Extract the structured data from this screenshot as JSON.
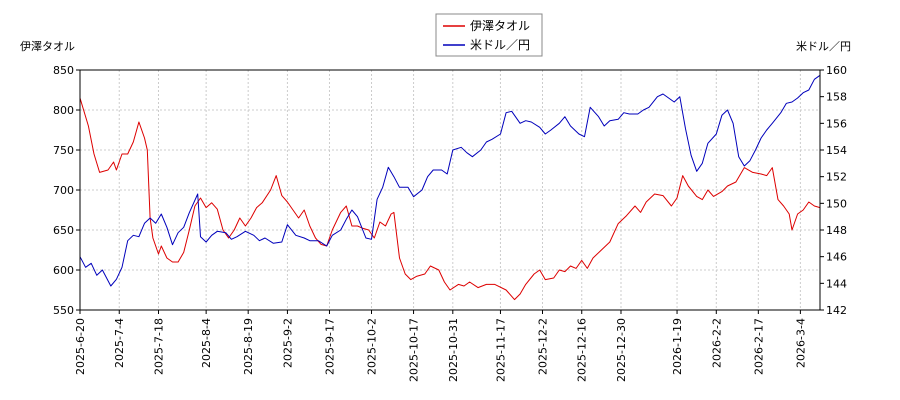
{
  "chart_data": {
    "type": "line",
    "title": "",
    "left_axis": {
      "label": "伊澤タオル",
      "ylim": [
        550,
        850
      ],
      "ticks": [
        550,
        600,
        650,
        700,
        750,
        800,
        850
      ]
    },
    "right_axis": {
      "label": "米ドル／円",
      "ylim": [
        142,
        160
      ],
      "ticks": [
        142,
        144,
        146,
        148,
        150,
        152,
        154,
        156,
        158,
        160
      ]
    },
    "x_axis": {
      "start": "2025-06-20",
      "end": "2026-03-11",
      "tick_labels": [
        "2025-6-20",
        "2025-7-4",
        "2025-7-18",
        "2025-8-4",
        "2025-8-19",
        "2025-9-2",
        "2025-9-17",
        "2025-10-2",
        "2025-10-17",
        "2025-10-31",
        "2025-11-17",
        "2025-12-2",
        "2025-12-16",
        "2025-12-30",
        "2026-1-19",
        "2026-2-2",
        "2026-2-17",
        "2026-3-4"
      ]
    },
    "grid": true,
    "legend": {
      "placement": "top-center"
    },
    "series": [
      {
        "name": "伊澤タオル",
        "axis": "left",
        "color": "#dd0000",
        "points": [
          [
            "2025-06-20",
            815
          ],
          [
            "2025-06-23",
            780
          ],
          [
            "2025-06-25",
            745
          ],
          [
            "2025-06-27",
            722
          ],
          [
            "2025-06-30",
            725
          ],
          [
            "2025-07-02",
            735
          ],
          [
            "2025-07-03",
            725
          ],
          [
            "2025-07-05",
            745
          ],
          [
            "2025-07-07",
            745
          ],
          [
            "2025-07-09",
            760
          ],
          [
            "2025-07-11",
            785
          ],
          [
            "2025-07-13",
            765
          ],
          [
            "2025-07-14",
            750
          ],
          [
            "2025-07-15",
            665
          ],
          [
            "2025-07-16",
            640
          ],
          [
            "2025-07-18",
            620
          ],
          [
            "2025-07-19",
            630
          ],
          [
            "2025-07-21",
            615
          ],
          [
            "2025-07-23",
            610
          ],
          [
            "2025-07-25",
            610
          ],
          [
            "2025-07-27",
            622
          ],
          [
            "2025-07-29",
            650
          ],
          [
            "2025-07-31",
            680
          ],
          [
            "2025-08-02",
            690
          ],
          [
            "2025-08-04",
            678
          ],
          [
            "2025-08-06",
            684
          ],
          [
            "2025-08-08",
            676
          ],
          [
            "2025-08-10",
            650
          ],
          [
            "2025-08-12",
            640
          ],
          [
            "2025-08-14",
            650
          ],
          [
            "2025-08-16",
            665
          ],
          [
            "2025-08-18",
            655
          ],
          [
            "2025-08-20",
            665
          ],
          [
            "2025-08-22",
            678
          ],
          [
            "2025-08-24",
            684
          ],
          [
            "2025-08-27",
            700
          ],
          [
            "2025-08-29",
            718
          ],
          [
            "2025-08-31",
            693
          ],
          [
            "2025-09-02",
            685
          ],
          [
            "2025-09-04",
            675
          ],
          [
            "2025-09-06",
            665
          ],
          [
            "2025-09-08",
            675
          ],
          [
            "2025-09-10",
            655
          ],
          [
            "2025-09-12",
            640
          ],
          [
            "2025-09-14",
            632
          ],
          [
            "2025-09-16",
            630
          ],
          [
            "2025-09-18",
            650
          ],
          [
            "2025-09-21",
            672
          ],
          [
            "2025-09-23",
            680
          ],
          [
            "2025-09-25",
            655
          ],
          [
            "2025-09-27",
            655
          ],
          [
            "2025-09-29",
            652
          ],
          [
            "2025-10-01",
            650
          ],
          [
            "2025-10-03",
            640
          ],
          [
            "2025-10-05",
            660
          ],
          [
            "2025-10-07",
            655
          ],
          [
            "2025-10-09",
            670
          ],
          [
            "2025-10-10",
            672
          ],
          [
            "2025-10-12",
            615
          ],
          [
            "2025-10-14",
            595
          ],
          [
            "2025-10-16",
            588
          ],
          [
            "2025-10-18",
            592
          ],
          [
            "2025-10-21",
            595
          ],
          [
            "2025-10-23",
            605
          ],
          [
            "2025-10-26",
            600
          ],
          [
            "2025-10-28",
            585
          ],
          [
            "2025-10-30",
            575
          ],
          [
            "2025-11-02",
            582
          ],
          [
            "2025-11-04",
            580
          ],
          [
            "2025-11-06",
            585
          ],
          [
            "2025-11-09",
            578
          ],
          [
            "2025-11-12",
            582
          ],
          [
            "2025-11-15",
            582
          ],
          [
            "2025-11-19",
            575
          ],
          [
            "2025-11-22",
            563
          ],
          [
            "2025-11-24",
            570
          ],
          [
            "2025-11-26",
            582
          ],
          [
            "2025-11-29",
            595
          ],
          [
            "2025-12-01",
            600
          ],
          [
            "2025-12-03",
            588
          ],
          [
            "2025-12-06",
            590
          ],
          [
            "2025-12-08",
            600
          ],
          [
            "2025-12-10",
            598
          ],
          [
            "2025-12-12",
            605
          ],
          [
            "2025-12-14",
            602
          ],
          [
            "2025-12-16",
            612
          ],
          [
            "2025-12-18",
            602
          ],
          [
            "2025-12-20",
            615
          ],
          [
            "2025-12-23",
            625
          ],
          [
            "2025-12-26",
            635
          ],
          [
            "2025-12-29",
            658
          ],
          [
            "2026-01-01",
            668
          ],
          [
            "2026-01-04",
            680
          ],
          [
            "2026-01-06",
            672
          ],
          [
            "2026-01-08",
            685
          ],
          [
            "2026-01-11",
            695
          ],
          [
            "2026-01-14",
            693
          ],
          [
            "2026-01-17",
            680
          ],
          [
            "2026-01-19",
            690
          ],
          [
            "2026-01-21",
            718
          ],
          [
            "2026-01-23",
            705
          ],
          [
            "2026-01-26",
            692
          ],
          [
            "2026-01-28",
            688
          ],
          [
            "2026-01-30",
            700
          ],
          [
            "2026-02-01",
            692
          ],
          [
            "2026-02-04",
            698
          ],
          [
            "2026-02-06",
            705
          ],
          [
            "2026-02-09",
            710
          ],
          [
            "2026-02-12",
            728
          ],
          [
            "2026-02-15",
            722
          ],
          [
            "2026-02-18",
            720
          ],
          [
            "2026-02-20",
            718
          ],
          [
            "2026-02-22",
            728
          ],
          [
            "2026-02-24",
            688
          ],
          [
            "2026-02-26",
            680
          ],
          [
            "2026-02-28",
            670
          ],
          [
            "2026-03-01",
            650
          ],
          [
            "2026-03-03",
            670
          ],
          [
            "2026-03-05",
            675
          ],
          [
            "2026-03-07",
            685
          ],
          [
            "2026-03-09",
            680
          ],
          [
            "2026-03-11",
            678
          ]
        ]
      },
      {
        "name": "米ドル／円",
        "axis": "right",
        "color": "#0000bb",
        "points": [
          [
            "2025-06-20",
            146.0
          ],
          [
            "2025-06-22",
            145.2
          ],
          [
            "2025-06-24",
            145.5
          ],
          [
            "2025-06-26",
            144.6
          ],
          [
            "2025-06-28",
            145.0
          ],
          [
            "2025-07-01",
            143.8
          ],
          [
            "2025-07-03",
            144.3
          ],
          [
            "2025-07-05",
            145.2
          ],
          [
            "2025-07-07",
            147.2
          ],
          [
            "2025-07-09",
            147.6
          ],
          [
            "2025-07-11",
            147.5
          ],
          [
            "2025-07-13",
            148.5
          ],
          [
            "2025-07-15",
            148.9
          ],
          [
            "2025-07-17",
            148.5
          ],
          [
            "2025-07-19",
            149.2
          ],
          [
            "2025-07-21",
            148.2
          ],
          [
            "2025-07-23",
            146.9
          ],
          [
            "2025-07-25",
            147.8
          ],
          [
            "2025-07-27",
            148.2
          ],
          [
            "2025-07-29",
            149.3
          ],
          [
            "2025-08-01",
            150.7
          ],
          [
            "2025-08-02",
            147.5
          ],
          [
            "2025-08-04",
            147.1
          ],
          [
            "2025-08-06",
            147.6
          ],
          [
            "2025-08-08",
            147.9
          ],
          [
            "2025-08-11",
            147.8
          ],
          [
            "2025-08-13",
            147.3
          ],
          [
            "2025-08-15",
            147.5
          ],
          [
            "2025-08-18",
            147.9
          ],
          [
            "2025-08-21",
            147.6
          ],
          [
            "2025-08-23",
            147.2
          ],
          [
            "2025-08-25",
            147.4
          ],
          [
            "2025-08-28",
            147.0
          ],
          [
            "2025-08-31",
            147.1
          ],
          [
            "2025-09-02",
            148.4
          ],
          [
            "2025-09-05",
            147.6
          ],
          [
            "2025-09-08",
            147.4
          ],
          [
            "2025-09-10",
            147.2
          ],
          [
            "2025-09-13",
            147.2
          ],
          [
            "2025-09-16",
            146.8
          ],
          [
            "2025-09-18",
            147.6
          ],
          [
            "2025-09-21",
            148.0
          ],
          [
            "2025-09-23",
            148.8
          ],
          [
            "2025-09-25",
            149.5
          ],
          [
            "2025-09-27",
            149.0
          ],
          [
            "2025-09-30",
            147.4
          ],
          [
            "2025-10-02",
            147.3
          ],
          [
            "2025-10-04",
            150.3
          ],
          [
            "2025-10-06",
            151.2
          ],
          [
            "2025-10-08",
            152.7
          ],
          [
            "2025-10-10",
            152.0
          ],
          [
            "2025-10-12",
            151.2
          ],
          [
            "2025-10-15",
            151.2
          ],
          [
            "2025-10-17",
            150.5
          ],
          [
            "2025-10-20",
            151.0
          ],
          [
            "2025-10-22",
            152.0
          ],
          [
            "2025-10-24",
            152.5
          ],
          [
            "2025-10-27",
            152.5
          ],
          [
            "2025-10-29",
            152.2
          ],
          [
            "2025-10-31",
            154.0
          ],
          [
            "2025-11-03",
            154.2
          ],
          [
            "2025-11-05",
            153.8
          ],
          [
            "2025-11-07",
            153.5
          ],
          [
            "2025-11-10",
            154.0
          ],
          [
            "2025-11-12",
            154.6
          ],
          [
            "2025-11-14",
            154.8
          ],
          [
            "2025-11-17",
            155.2
          ],
          [
            "2025-11-19",
            156.8
          ],
          [
            "2025-11-21",
            156.9
          ],
          [
            "2025-11-24",
            156.0
          ],
          [
            "2025-11-26",
            156.2
          ],
          [
            "2025-11-28",
            156.1
          ],
          [
            "2025-12-01",
            155.7
          ],
          [
            "2025-12-03",
            155.2
          ],
          [
            "2025-12-05",
            155.5
          ],
          [
            "2025-12-08",
            156.0
          ],
          [
            "2025-12-10",
            156.5
          ],
          [
            "2025-12-12",
            155.8
          ],
          [
            "2025-12-15",
            155.2
          ],
          [
            "2025-12-17",
            155.0
          ],
          [
            "2025-12-19",
            157.2
          ],
          [
            "2025-12-22",
            156.5
          ],
          [
            "2025-12-24",
            155.8
          ],
          [
            "2025-12-26",
            156.2
          ],
          [
            "2025-12-29",
            156.3
          ],
          [
            "2025-12-31",
            156.8
          ],
          [
            "2026-01-02",
            156.7
          ],
          [
            "2026-01-05",
            156.7
          ],
          [
            "2026-01-07",
            157.0
          ],
          [
            "2026-01-09",
            157.2
          ],
          [
            "2026-01-12",
            158.0
          ],
          [
            "2026-01-14",
            158.2
          ],
          [
            "2026-01-16",
            157.9
          ],
          [
            "2026-01-18",
            157.6
          ],
          [
            "2026-01-20",
            158.0
          ],
          [
            "2026-01-22",
            155.6
          ],
          [
            "2026-01-24",
            153.6
          ],
          [
            "2026-01-26",
            152.4
          ],
          [
            "2026-01-28",
            153.0
          ],
          [
            "2026-01-30",
            154.5
          ],
          [
            "2026-02-02",
            155.2
          ],
          [
            "2026-02-04",
            156.6
          ],
          [
            "2026-02-06",
            157.0
          ],
          [
            "2026-02-08",
            156.0
          ],
          [
            "2026-02-10",
            153.5
          ],
          [
            "2026-02-12",
            152.8
          ],
          [
            "2026-02-14",
            153.2
          ],
          [
            "2026-02-16",
            154.0
          ],
          [
            "2026-02-18",
            154.9
          ],
          [
            "2026-02-20",
            155.5
          ],
          [
            "2026-02-22",
            156.0
          ],
          [
            "2026-02-25",
            156.8
          ],
          [
            "2026-02-27",
            157.5
          ],
          [
            "2026-03-01",
            157.6
          ],
          [
            "2026-03-03",
            157.9
          ],
          [
            "2026-03-05",
            158.3
          ],
          [
            "2026-03-07",
            158.5
          ],
          [
            "2026-03-09",
            159.3
          ],
          [
            "2026-03-11",
            159.6
          ]
        ]
      }
    ]
  }
}
